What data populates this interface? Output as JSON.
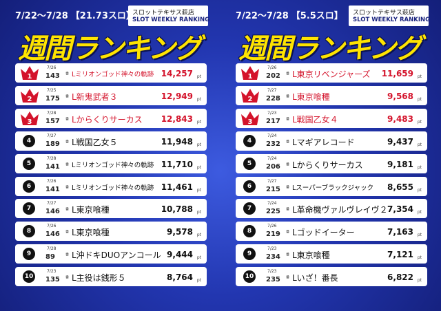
{
  "panels": [
    {
      "period": "7/22～7/28",
      "rate": "【21.73スロ】",
      "store": "スロットテキサス萩店",
      "subtitle": "SLOT WEEKLY RANKING",
      "title": "週間ランキング",
      "machine_label": "番",
      "unit": "pt",
      "rows": [
        {
          "rank": "1",
          "date": "7/26",
          "number": "143",
          "name": "Lミリオンゴッド神々の軌跡",
          "score": "14,257"
        },
        {
          "rank": "2",
          "date": "7/25",
          "number": "175",
          "name": "L新鬼武者３",
          "score": "12,949"
        },
        {
          "rank": "3",
          "date": "7/28",
          "number": "157",
          "name": "Lからくりサーカス",
          "score": "12,843"
        },
        {
          "rank": "4",
          "date": "7/27",
          "number": "189",
          "name": "L戦国乙女５",
          "score": "11,948"
        },
        {
          "rank": "5",
          "date": "7/28",
          "number": "141",
          "name": "Lミリオンゴッド神々の軌跡",
          "score": "11,710"
        },
        {
          "rank": "6",
          "date": "7/26",
          "number": "141",
          "name": "Lミリオンゴッド神々の軌跡",
          "score": "11,461"
        },
        {
          "rank": "7",
          "date": "7/27",
          "number": "146",
          "name": "L東京喰種",
          "score": "10,788"
        },
        {
          "rank": "8",
          "date": "7/26",
          "number": "146",
          "name": "L東京喰種",
          "score": "9,578"
        },
        {
          "rank": "9",
          "date": "7/28",
          "number": "89",
          "name": "L沖ドキDUOアンコール",
          "score": "9,444"
        },
        {
          "rank": "10",
          "date": "7/23",
          "number": "135",
          "name": "L主役は銭形５",
          "score": "8,764"
        }
      ]
    },
    {
      "period": "7/22～7/28",
      "rate": "【5.5スロ】",
      "store": "スロットテキサス萩店",
      "subtitle": "SLOT WEEKLY RANKING",
      "title": "週間ランキング",
      "machine_label": "番",
      "unit": "pt",
      "rows": [
        {
          "rank": "1",
          "date": "7/26",
          "number": "202",
          "name": "L東京リベンジャーズ",
          "score": "11,659"
        },
        {
          "rank": "2",
          "date": "7/27",
          "number": "228",
          "name": "L東京喰種",
          "score": "9,568"
        },
        {
          "rank": "3",
          "date": "7/23",
          "number": "217",
          "name": "L戦国乙女４",
          "score": "9,483"
        },
        {
          "rank": "4",
          "date": "7/24",
          "number": "232",
          "name": "Lマギアレコード",
          "score": "9,437"
        },
        {
          "rank": "5",
          "date": "7/24",
          "number": "206",
          "name": "Lからくりサーカス",
          "score": "9,181"
        },
        {
          "rank": "6",
          "date": "7/27",
          "number": "215",
          "name": "Lスーパーブラックジャック",
          "score": "8,655"
        },
        {
          "rank": "7",
          "date": "7/24",
          "number": "225",
          "name": "L革命機ヴァルヴレイヴ２",
          "score": "7,354"
        },
        {
          "rank": "8",
          "date": "7/26",
          "number": "219",
          "name": "Lゴッドイーター",
          "score": "7,163"
        },
        {
          "rank": "9",
          "date": "7/23",
          "number": "234",
          "name": "L東京喰種",
          "score": "7,121"
        },
        {
          "rank": "10",
          "date": "7/23",
          "number": "235",
          "name": "Lいざ！番長",
          "score": "6,822"
        }
      ]
    }
  ]
}
